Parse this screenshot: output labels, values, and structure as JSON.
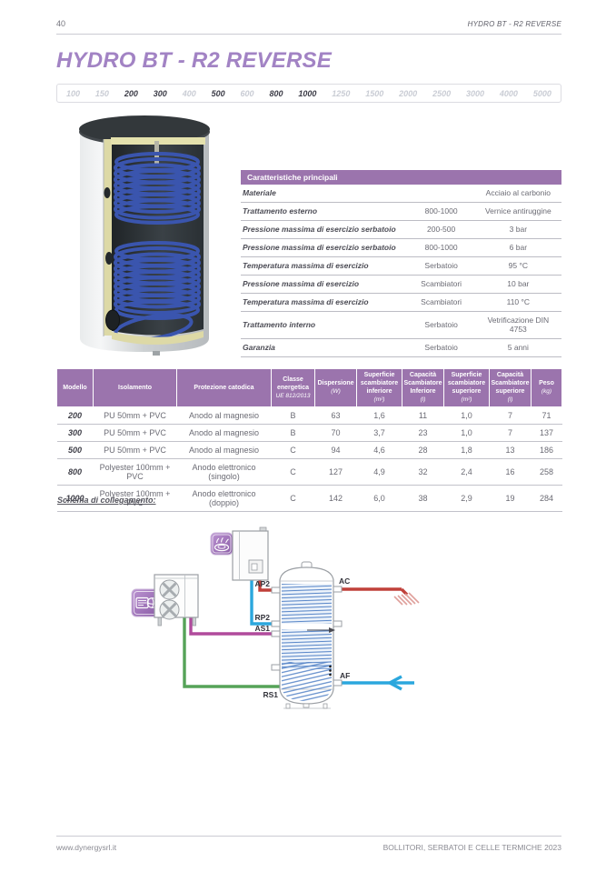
{
  "page": {
    "number": "40",
    "header_title": "HYDRO BT - R2 REVERSE",
    "footer_left": "www.dynergysrl.it",
    "footer_right": "BOLLITORI, SERBATOI E CELLE TERMICHE 2023"
  },
  "title": "HYDRO BT - R2 REVERSE",
  "capacity_scale": {
    "values": [
      "100",
      "150",
      "200",
      "300",
      "400",
      "500",
      "600",
      "800",
      "1000",
      "1250",
      "1500",
      "2000",
      "2500",
      "3000",
      "4000",
      "5000"
    ],
    "active": [
      "200",
      "300",
      "500",
      "800",
      "1000"
    ]
  },
  "caratteristiche": {
    "header": "Caratteristiche principali",
    "rows": [
      {
        "label": "Materiale",
        "qualifier": "",
        "value": "Acciaio al carbonio"
      },
      {
        "label": "Trattamento esterno",
        "qualifier": "800-1000",
        "value": "Vernice antiruggine"
      },
      {
        "label": "Pressione massima di esercizio serbatoio",
        "qualifier": "200-500",
        "value": "3 bar"
      },
      {
        "label": "Pressione massima di esercizio serbatoio",
        "qualifier": "800-1000",
        "value": "6 bar"
      },
      {
        "label": "Temperatura massima di esercizio",
        "qualifier": "Serbatoio",
        "value": "95 °C"
      },
      {
        "label": "Pressione massima di esercizio",
        "qualifier": "Scambiatori",
        "value": "10 bar"
      },
      {
        "label": "Temperatura massima di esercizio",
        "qualifier": "Scambiatori",
        "value": "110 °C"
      },
      {
        "label": "Trattamento interno",
        "qualifier": "Serbatoio",
        "value": "Vetrificazione DIN 4753"
      },
      {
        "label": "Garanzia",
        "qualifier": "Serbatoio",
        "value": "5 anni"
      }
    ]
  },
  "spec_table": {
    "headers": [
      {
        "label": "Modello",
        "sub": ""
      },
      {
        "label": "Isolamento",
        "sub": ""
      },
      {
        "label": "Protezione catodica",
        "sub": ""
      },
      {
        "label": "Classe energetica",
        "sub": "UE 812/2013"
      },
      {
        "label": "Dispersione",
        "sub": "(W)"
      },
      {
        "label": "Superficie scambiatore inferiore",
        "sub": "(m²)"
      },
      {
        "label": "Capacità Scambiatore Inferiore",
        "sub": "(l)"
      },
      {
        "label": "Superficie scambiatore superiore",
        "sub": "(m²)"
      },
      {
        "label": "Capacità Scambiatore superiore",
        "sub": "(l)"
      },
      {
        "label": "Peso",
        "sub": "(kg)"
      }
    ],
    "rows": [
      [
        "200",
        "PU 50mm + PVC",
        "Anodo al magnesio",
        "B",
        "63",
        "1,6",
        "11",
        "1,0",
        "7",
        "71"
      ],
      [
        "300",
        "PU 50mm + PVC",
        "Anodo al magnesio",
        "B",
        "70",
        "3,7",
        "23",
        "1,0",
        "7",
        "137"
      ],
      [
        "500",
        "PU 50mm + PVC",
        "Anodo al magnesio",
        "C",
        "94",
        "4,6",
        "28",
        "1,8",
        "13",
        "186"
      ],
      [
        "800",
        "Polyester 100mm + PVC",
        "Anodo elettronico (singolo)",
        "C",
        "127",
        "4,9",
        "32",
        "2,4",
        "16",
        "258"
      ],
      [
        "1000",
        "Polyester 100mm + PVC",
        "Anodo elettronico (doppio)",
        "C",
        "142",
        "6,0",
        "38",
        "2,9",
        "19",
        "284"
      ]
    ]
  },
  "schema": {
    "label": "Schema di collegamento:"
  },
  "diagram": {
    "labels": {
      "AP2": "AP2",
      "RP2": "RP2",
      "AS1": "AS1",
      "RS1": "RS1",
      "AC": "AC",
      "AF": "AF"
    },
    "icons": [
      "heat-pump-icon",
      "burner-icon",
      "shower-icon",
      "cold-water-arrow-icon"
    ]
  },
  "colors": {
    "accent_purple": "#a283c4",
    "table_header_purple": "#9b74ad",
    "pipe_red": "#c0403a",
    "pipe_blue": "#2ba7dd",
    "pipe_magenta": "#b04a9c",
    "pipe_green": "#56a358"
  }
}
